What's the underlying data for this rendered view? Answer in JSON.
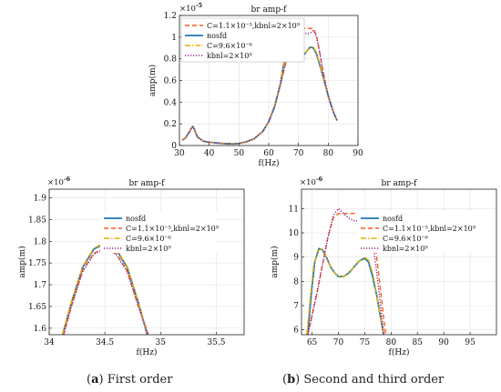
{
  "colors": {
    "nosfd": "#1f77b4",
    "c_kbnl": "#ff5a1f",
    "c_only": "#e8b000",
    "kbnl": "#8b1a8b"
  },
  "chart_data": [
    {
      "type": "line",
      "title": "br amp-f",
      "xlabel": "f(Hz)",
      "ylabel": "amp(m)",
      "exponent_label": "×10",
      "exponent_power": "-5",
      "xlim": [
        30,
        90
      ],
      "ylim": [
        0,
        1.2
      ],
      "xticks": [
        "30",
        "40",
        "50",
        "60",
        "70",
        "80",
        "90"
      ],
      "yticks": [
        "0",
        "0.2",
        "0.4",
        "0.6",
        "0.8",
        "1",
        "1.2"
      ],
      "xtick_values": [
        30,
        40,
        50,
        60,
        70,
        80,
        90
      ],
      "ytick_values": [
        0,
        0.2,
        0.4,
        0.6,
        0.8,
        1.0,
        1.2
      ],
      "grid": true,
      "legend_position": "top-left",
      "series": [
        {
          "name": "C=1.1×10⁻⁵,kbnl=2×10⁹",
          "style": "dashed",
          "color": "#ff5a1f",
          "x": [
            31,
            32,
            33,
            34,
            34.5,
            35,
            36,
            38,
            40,
            42,
            45,
            48,
            50,
            52,
            55,
            58,
            60,
            62,
            64,
            66,
            68,
            69,
            70,
            71,
            72,
            73,
            74,
            75,
            76,
            77,
            78,
            79,
            80,
            81,
            82,
            83
          ],
          "y": [
            0.05,
            0.07,
            0.11,
            0.16,
            0.175,
            0.15,
            0.08,
            0.04,
            0.03,
            0.025,
            0.018,
            0.015,
            0.02,
            0.03,
            0.06,
            0.13,
            0.22,
            0.36,
            0.57,
            0.8,
            0.98,
            1.05,
            1.08,
            1.08,
            1.08,
            1.08,
            1.08,
            1.08,
            1.02,
            0.88,
            0.72,
            0.58,
            0.46,
            0.37,
            0.29,
            0.23
          ]
        },
        {
          "name": "nosfd",
          "style": "solid",
          "color": "#1f77b4",
          "x": [
            31,
            32,
            33,
            34,
            34.5,
            35,
            36,
            38,
            40,
            42,
            45,
            48,
            50,
            52,
            55,
            58,
            60,
            62,
            64,
            65,
            66,
            67,
            68,
            69,
            70,
            71,
            72,
            73,
            74,
            75,
            76,
            77,
            78,
            79,
            80,
            81,
            82,
            83
          ],
          "y": [
            0.05,
            0.07,
            0.11,
            0.16,
            0.175,
            0.15,
            0.08,
            0.04,
            0.03,
            0.025,
            0.018,
            0.015,
            0.02,
            0.03,
            0.06,
            0.13,
            0.22,
            0.36,
            0.58,
            0.75,
            0.92,
            0.94,
            0.91,
            0.86,
            0.82,
            0.81,
            0.84,
            0.88,
            0.91,
            0.9,
            0.85,
            0.76,
            0.66,
            0.56,
            0.46,
            0.37,
            0.29,
            0.23
          ]
        },
        {
          "name": "C=9.6×10⁻⁶",
          "style": "dashdot",
          "color": "#e8b000",
          "x": [
            31,
            32,
            33,
            34,
            34.5,
            35,
            36,
            38,
            40,
            42,
            45,
            48,
            50,
            52,
            55,
            58,
            60,
            62,
            64,
            65,
            66,
            67,
            68,
            69,
            70,
            71,
            72,
            73,
            74,
            75,
            76,
            77,
            78,
            79,
            80,
            81,
            82,
            83
          ],
          "y": [
            0.05,
            0.07,
            0.11,
            0.16,
            0.175,
            0.15,
            0.08,
            0.04,
            0.03,
            0.025,
            0.018,
            0.015,
            0.02,
            0.03,
            0.06,
            0.13,
            0.22,
            0.36,
            0.58,
            0.76,
            0.93,
            0.95,
            0.92,
            0.86,
            0.82,
            0.81,
            0.84,
            0.88,
            0.91,
            0.91,
            0.86,
            0.77,
            0.66,
            0.56,
            0.46,
            0.37,
            0.29,
            0.23
          ]
        },
        {
          "name": "kbnl=2×10⁹",
          "style": "dotted",
          "color": "#8b1a8b",
          "x": [
            31,
            32,
            33,
            34,
            34.5,
            35,
            36,
            38,
            40,
            42,
            45,
            48,
            50,
            52,
            55,
            58,
            60,
            62,
            64,
            66,
            68,
            69,
            70,
            71,
            72,
            73,
            74,
            75,
            76,
            77,
            78,
            79,
            80,
            81,
            82,
            83
          ],
          "y": [
            0.05,
            0.07,
            0.11,
            0.16,
            0.175,
            0.15,
            0.08,
            0.04,
            0.03,
            0.025,
            0.018,
            0.015,
            0.02,
            0.03,
            0.06,
            0.13,
            0.22,
            0.36,
            0.57,
            0.8,
            0.98,
            1.04,
            1.07,
            1.06,
            1.04,
            1.03,
            1.04,
            1.06,
            1.01,
            0.88,
            0.72,
            0.58,
            0.46,
            0.37,
            0.29,
            0.23
          ]
        }
      ]
    },
    {
      "type": "line",
      "title": "br amp-f",
      "xlabel": "f(Hz)",
      "ylabel": "amp(m)",
      "exponent_label": "×10",
      "exponent_power": "-6",
      "xlim": [
        34,
        35.75
      ],
      "ylim": [
        1.585,
        1.92
      ],
      "xticks": [
        "34",
        "34.5",
        "35",
        "35.5"
      ],
      "yticks": [
        "1.6",
        "1.65",
        "1.7",
        "1.75",
        "1.8",
        "1.85",
        "1.9"
      ],
      "xtick_values": [
        34,
        34.5,
        35,
        35.5
      ],
      "ytick_values": [
        1.6,
        1.65,
        1.7,
        1.75,
        1.8,
        1.85,
        1.9
      ],
      "grid": true,
      "legend_position": "center-right",
      "series": [
        {
          "name": "nosfd",
          "style": "solid",
          "color": "#1f77b4",
          "x": [
            34.12,
            34.2,
            34.3,
            34.4,
            34.5,
            34.6,
            34.7,
            34.8,
            34.88
          ],
          "y": [
            1.585,
            1.66,
            1.74,
            1.782,
            1.795,
            1.782,
            1.74,
            1.66,
            1.585
          ]
        },
        {
          "name": "C=1.1×10⁻⁵,kbnl=2×10⁹",
          "style": "dashed",
          "color": "#ff5a1f",
          "x": [
            34.13,
            34.2,
            34.3,
            34.4,
            34.5,
            34.6,
            34.7,
            34.8,
            34.89
          ],
          "y": [
            1.585,
            1.652,
            1.732,
            1.772,
            1.786,
            1.772,
            1.732,
            1.652,
            1.585
          ]
        },
        {
          "name": "C=9.6×10⁻⁶",
          "style": "dashdot",
          "color": "#e8b000",
          "x": [
            34.12,
            34.2,
            34.3,
            34.4,
            34.5,
            34.6,
            34.7,
            34.8,
            34.88
          ],
          "y": [
            1.585,
            1.662,
            1.742,
            1.784,
            1.797,
            1.784,
            1.742,
            1.662,
            1.585
          ]
        },
        {
          "name": "kbnl=2×10⁹",
          "style": "dotted",
          "color": "#8b1a8b",
          "x": [
            34.13,
            34.2,
            34.3,
            34.4,
            34.5,
            34.6,
            34.7,
            34.8,
            34.89
          ],
          "y": [
            1.585,
            1.65,
            1.73,
            1.77,
            1.784,
            1.77,
            1.73,
            1.65,
            1.585
          ]
        }
      ]
    },
    {
      "type": "line",
      "title": "br amp-f",
      "xlabel": "f(Hz)",
      "ylabel": "amp(m)",
      "exponent_label": "×10",
      "exponent_power": "-6",
      "xlim": [
        63,
        100
      ],
      "ylim": [
        5.8,
        11.8
      ],
      "xticks": [
        "65",
        "70",
        "75",
        "80",
        "85",
        "90",
        "95"
      ],
      "yticks": [
        "6",
        "7",
        "8",
        "9",
        "10",
        "11"
      ],
      "xtick_values": [
        65,
        70,
        75,
        80,
        85,
        90,
        95
      ],
      "ytick_values": [
        6,
        7,
        8,
        9,
        10,
        11
      ],
      "grid": true,
      "legend_position": "top-right",
      "series": [
        {
          "name": "nosfd",
          "style": "solid",
          "color": "#1f77b4",
          "x": [
            64.2,
            64.8,
            65.5,
            66.3,
            67,
            67.8,
            68.5,
            69.3,
            70,
            71,
            72,
            73,
            74,
            75,
            75.7,
            76.5,
            77.3,
            78,
            78.6
          ],
          "y": [
            5.8,
            7.4,
            8.8,
            9.35,
            9.3,
            8.95,
            8.6,
            8.35,
            8.2,
            8.2,
            8.35,
            8.6,
            8.85,
            8.95,
            8.8,
            8.2,
            7.4,
            6.5,
            5.8
          ]
        },
        {
          "name": "C=1.1×10⁻⁵,kbnl=2×10⁹",
          "style": "dashed",
          "color": "#ff5a1f",
          "x": [
            64.2,
            65,
            66,
            67,
            68,
            69,
            70,
            71,
            72,
            73,
            74,
            75,
            76,
            76.5,
            77,
            77.8,
            78.5,
            79
          ],
          "y": [
            5.8,
            6.6,
            7.6,
            8.7,
            9.8,
            10.6,
            10.8,
            10.8,
            10.8,
            10.8,
            10.8,
            10.8,
            10.8,
            10.8,
            9.5,
            8.0,
            6.7,
            5.8
          ]
        },
        {
          "name": "C=9.6×10⁻⁶",
          "style": "dashdot",
          "color": "#e8b000",
          "x": [
            64.0,
            64.6,
            65.3,
            66.1,
            66.9,
            67.7,
            68.5,
            69.3,
            70,
            71,
            72,
            73,
            74,
            75,
            75.8,
            76.6,
            77.3,
            78,
            78.6
          ],
          "y": [
            5.8,
            7.2,
            8.6,
            9.25,
            9.35,
            9.0,
            8.6,
            8.35,
            8.2,
            8.2,
            8.35,
            8.6,
            8.85,
            9.0,
            8.85,
            8.25,
            7.4,
            6.5,
            5.8
          ]
        },
        {
          "name": "kbnl=2×10⁹",
          "style": "dotted",
          "color": "#8b1a8b",
          "x": [
            64.2,
            65,
            66,
            67,
            68,
            69,
            70,
            71,
            72,
            73,
            74,
            75,
            75.7,
            76.5,
            77.2,
            78,
            78.6
          ],
          "y": [
            5.8,
            6.6,
            7.6,
            8.7,
            9.8,
            10.7,
            11.0,
            10.8,
            10.6,
            10.5,
            10.5,
            10.6,
            10.5,
            9.7,
            8.5,
            7.0,
            5.8
          ]
        }
      ]
    }
  ],
  "captions": [
    {
      "letter": "a",
      "text": "First order"
    },
    {
      "letter": "b",
      "text": "Second and third order"
    }
  ]
}
